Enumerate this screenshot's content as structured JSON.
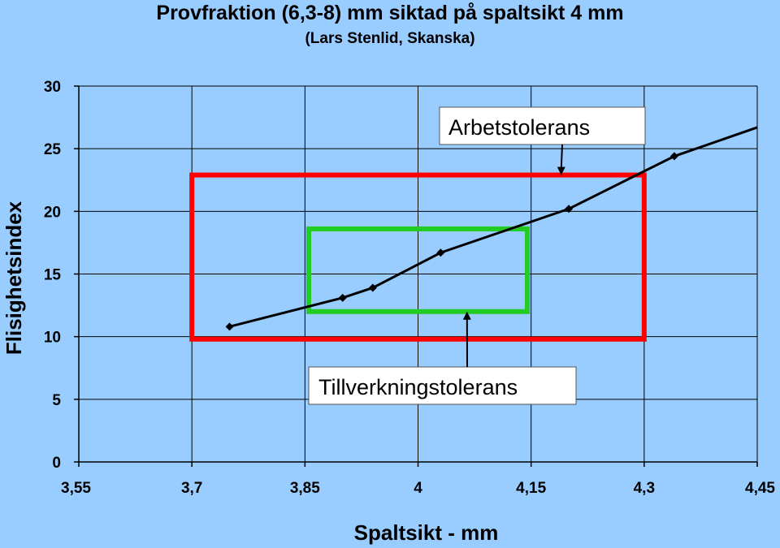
{
  "chart_data": {
    "type": "line",
    "title": "Provfraktion (6,3-8) mm siktad på spaltsikt 4 mm",
    "subtitle": "(Lars Stenlid, Skanska)",
    "xlabel": "Spaltsikt - mm",
    "ylabel": "Flisighetsindex",
    "xlim": [
      3.55,
      4.45
    ],
    "ylim": [
      0,
      30
    ],
    "x_ticks": [
      3.55,
      3.7,
      3.85,
      4.0,
      4.15,
      4.3,
      4.45
    ],
    "x_tick_labels": [
      "3,55",
      "3,7",
      "3,85",
      "4",
      "4,15",
      "4,3",
      "4,45"
    ],
    "y_ticks": [
      0,
      5,
      10,
      15,
      20,
      25,
      30
    ],
    "y_tick_labels": [
      "0",
      "5",
      "10",
      "15",
      "20",
      "25",
      "30"
    ],
    "grid": true,
    "series": [
      {
        "color": "#000000",
        "marker": "diamond",
        "x": [
          3.75,
          3.9,
          3.94,
          4.03,
          4.2,
          4.34
        ],
        "y": [
          10.8,
          13.1,
          13.9,
          16.7,
          20.2,
          24.4
        ],
        "line_extends_to": {
          "x": 4.45,
          "y": 26.7
        }
      }
    ],
    "regions": [
      {
        "label": "Arbetstolerans",
        "color": "#ff0000",
        "x": [
          3.7,
          4.3
        ],
        "y": [
          9.8,
          22.9
        ],
        "arrow_to": {
          "x": 4.19,
          "y": 22.9
        }
      },
      {
        "label": "Tillverkningstolerans",
        "color": "#22cc22",
        "x": [
          3.855,
          4.145
        ],
        "y": [
          12.0,
          18.6
        ],
        "arrow_to": {
          "x": 4.065,
          "y": 12.0
        }
      }
    ]
  }
}
